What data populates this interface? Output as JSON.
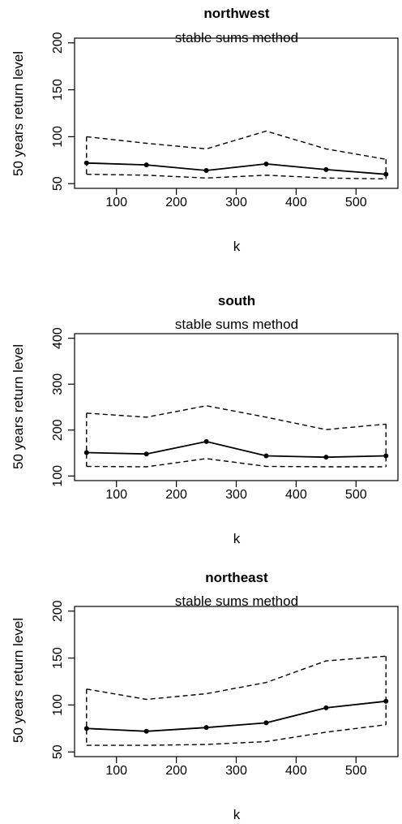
{
  "chart_data": [
    {
      "type": "line",
      "title": "northwest",
      "subtitle": "stable sums method",
      "xlabel": "k",
      "ylabel": "50 years return level",
      "xlim": [
        30,
        570
      ],
      "ylim": [
        45,
        205
      ],
      "xticks": [
        100,
        200,
        300,
        400,
        500
      ],
      "yticks": [
        50,
        100,
        150,
        200
      ],
      "x": [
        50,
        150,
        250,
        350,
        450,
        550
      ],
      "series": [
        {
          "role": "estimate",
          "style": "solid",
          "markers": true,
          "values": [
            72,
            70,
            64,
            71,
            65,
            60
          ]
        },
        {
          "role": "upper",
          "style": "dashed",
          "markers": false,
          "values": [
            100,
            93,
            87,
            106,
            87,
            76
          ]
        },
        {
          "role": "lower",
          "style": "dashed",
          "markers": false,
          "values": [
            60,
            59,
            56,
            59,
            56,
            55
          ]
        }
      ]
    },
    {
      "type": "line",
      "title": "south",
      "subtitle": "stable sums method",
      "xlabel": "k",
      "ylabel": "50 years return level",
      "xlim": [
        30,
        570
      ],
      "ylim": [
        90,
        410
      ],
      "xticks": [
        100,
        200,
        300,
        400,
        500
      ],
      "yticks": [
        100,
        200,
        300,
        400
      ],
      "x": [
        50,
        150,
        250,
        350,
        450,
        550
      ],
      "series": [
        {
          "role": "estimate",
          "style": "solid",
          "markers": true,
          "values": [
            151,
            148,
            175,
            144,
            141,
            144
          ]
        },
        {
          "role": "upper",
          "style": "dashed",
          "markers": false,
          "values": [
            237,
            228,
            253,
            228,
            201,
            213
          ]
        },
        {
          "role": "lower",
          "style": "dashed",
          "markers": false,
          "values": [
            121,
            120,
            138,
            121,
            120,
            120
          ]
        }
      ]
    },
    {
      "type": "line",
      "title": "northeast",
      "subtitle": "stable sums method",
      "xlabel": "k",
      "ylabel": "50 years return level",
      "xlim": [
        30,
        570
      ],
      "ylim": [
        45,
        205
      ],
      "xticks": [
        100,
        200,
        300,
        400,
        500
      ],
      "yticks": [
        50,
        100,
        150,
        200
      ],
      "x": [
        50,
        150,
        250,
        350,
        450,
        550
      ],
      "series": [
        {
          "role": "estimate",
          "style": "solid",
          "markers": true,
          "values": [
            75,
            72,
            76,
            81,
            97,
            104
          ]
        },
        {
          "role": "upper",
          "style": "dashed",
          "markers": false,
          "values": [
            117,
            106,
            112,
            124,
            147,
            152
          ]
        },
        {
          "role": "lower",
          "style": "dashed",
          "markers": false,
          "values": [
            57,
            57,
            58,
            61,
            71,
            79
          ]
        }
      ]
    }
  ]
}
